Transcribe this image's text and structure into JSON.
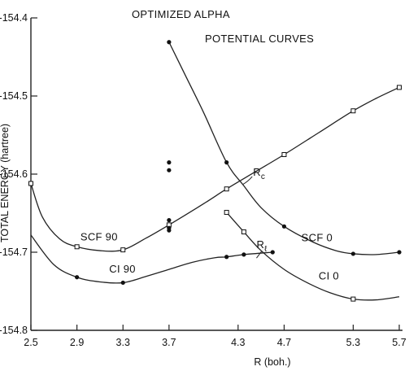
{
  "chart_data": {
    "type": "line",
    "title": "OPTIMIZED ALPHA",
    "subtitle": "POTENTIAL CURVES",
    "xlabel": "R (boh.)",
    "ylabel": "TOTAL ENERGY (hartree)",
    "xlim": [
      2.5,
      5.7
    ],
    "ylim": [
      -154.8,
      -154.4
    ],
    "x_ticks": [
      "2.5",
      "2.9",
      "3.3",
      "3.7",
      "4.3",
      "4.7",
      "5.3",
      "5.7"
    ],
    "y_ticks": [
      "-154.4",
      "-154.5",
      "-154.6",
      "-154.7",
      "-154.8"
    ],
    "grid": false,
    "legend": "none",
    "series": [
      {
        "name": "SCF 90",
        "marker": "open-square",
        "points": [
          [
            2.5,
            -154.612
          ],
          [
            2.9,
            -154.693
          ],
          [
            3.3,
            -154.697
          ],
          [
            3.7,
            -154.665
          ],
          [
            4.2,
            -154.619
          ],
          [
            4.7,
            -154.575
          ],
          [
            5.3,
            -154.519
          ],
          [
            5.7,
            -154.489
          ]
        ],
        "curve": [
          [
            2.5,
            -154.612
          ],
          [
            2.6,
            -154.655
          ],
          [
            2.75,
            -154.683
          ],
          [
            2.9,
            -154.693
          ],
          [
            3.1,
            -154.698
          ],
          [
            3.3,
            -154.697
          ],
          [
            3.5,
            -154.682
          ],
          [
            3.7,
            -154.665
          ],
          [
            4.0,
            -154.638
          ],
          [
            4.2,
            -154.619
          ],
          [
            4.45,
            -154.597
          ],
          [
            4.7,
            -154.575
          ],
          [
            5.0,
            -154.547
          ],
          [
            5.3,
            -154.519
          ],
          [
            5.5,
            -154.503
          ],
          [
            5.7,
            -154.489
          ]
        ]
      },
      {
        "name": "SCF 0",
        "marker": "filled-circle",
        "points": [
          [
            3.7,
            -154.431
          ],
          [
            4.2,
            -154.585
          ],
          [
            4.7,
            -154.667
          ],
          [
            5.3,
            -154.702
          ],
          [
            5.7,
            -154.7
          ]
        ],
        "curve": [
          [
            3.7,
            -154.431
          ],
          [
            3.85,
            -154.476
          ],
          [
            4.0,
            -154.521
          ],
          [
            4.2,
            -154.585
          ],
          [
            4.35,
            -154.615
          ],
          [
            4.5,
            -154.643
          ],
          [
            4.7,
            -154.667
          ],
          [
            4.95,
            -154.687
          ],
          [
            5.15,
            -154.698
          ],
          [
            5.3,
            -154.702
          ],
          [
            5.5,
            -154.703
          ],
          [
            5.7,
            -154.7
          ]
        ]
      },
      {
        "name": "CI 90",
        "marker": "filled-circle",
        "points": [
          [
            2.9,
            -154.732
          ],
          [
            3.3,
            -154.739
          ],
          [
            4.2,
            -154.706
          ],
          [
            4.35,
            -154.703
          ],
          [
            4.6,
            -154.7
          ]
        ],
        "curve": [
          [
            2.5,
            -154.678
          ],
          [
            2.7,
            -154.716
          ],
          [
            2.9,
            -154.732
          ],
          [
            3.1,
            -154.738
          ],
          [
            3.3,
            -154.739
          ],
          [
            3.5,
            -154.731
          ],
          [
            3.7,
            -154.722
          ],
          [
            3.9,
            -154.713
          ],
          [
            4.1,
            -154.707
          ],
          [
            4.2,
            -154.706
          ],
          [
            4.35,
            -154.703
          ],
          [
            4.6,
            -154.7
          ]
        ]
      },
      {
        "name": "CI 0",
        "marker": "open-square",
        "points": [
          [
            4.2,
            -154.649
          ],
          [
            4.35,
            -154.674
          ],
          [
            5.3,
            -154.76
          ]
        ],
        "curve": [
          [
            4.2,
            -154.649
          ],
          [
            4.35,
            -154.674
          ],
          [
            4.5,
            -154.698
          ],
          [
            4.7,
            -154.722
          ],
          [
            4.9,
            -154.739
          ],
          [
            5.1,
            -154.752
          ],
          [
            5.3,
            -154.76
          ],
          [
            5.5,
            -154.761
          ],
          [
            5.7,
            -154.757
          ]
        ]
      }
    ],
    "extra_points": [
      [
        3.7,
        -154.585
      ],
      [
        3.7,
        -154.595
      ],
      [
        3.7,
        -154.659
      ],
      [
        3.7,
        -154.669
      ],
      [
        3.7,
        -154.672
      ]
    ],
    "annotations": [
      {
        "text": "SCF 90",
        "x": 2.93,
        "y": -154.685
      },
      {
        "text": "SCF 0",
        "x": 4.85,
        "y": -154.686
      },
      {
        "text": "CI 90",
        "x": 3.18,
        "y": -154.726
      },
      {
        "text": "CI 0",
        "x": 5.0,
        "y": -154.735
      },
      {
        "text": "R",
        "sub": "c",
        "x": 4.43,
        "y": -154.602
      },
      {
        "text": "R",
        "sub": "ℓ",
        "x": 4.46,
        "y": -154.695
      }
    ]
  }
}
